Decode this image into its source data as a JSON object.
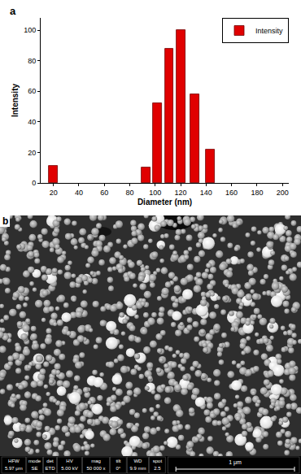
{
  "chart_data": {
    "type": "bar",
    "x_label": "Diameter (nm)",
    "y_label": "Intensity",
    "x": [
      20,
      93,
      102,
      111,
      120,
      131,
      143
    ],
    "series": [
      {
        "name": "Intensity",
        "color": "#e00000",
        "values": [
          11,
          10,
          52,
          88,
          100,
          58,
          22
        ]
      }
    ],
    "xlim": [
      10,
      205
    ],
    "xticks": [
      20,
      40,
      60,
      80,
      100,
      120,
      140,
      160,
      180,
      200
    ],
    "ylim": [
      0,
      108
    ],
    "yticks": [
      0,
      20,
      40,
      60,
      80,
      100
    ],
    "grid": false,
    "legend": "top right"
  },
  "panel_labels": [
    "a",
    "b"
  ],
  "image": {
    "info_bar": [
      [
        "HFW",
        "5.97 μm"
      ],
      [
        "mode",
        "SE"
      ],
      [
        "det",
        "ETD"
      ],
      [
        "HV",
        "5.00 kV"
      ],
      [
        "mag",
        "50 000 x"
      ],
      [
        "tilt",
        "0°"
      ],
      [
        "WD",
        "9.9 mm"
      ],
      [
        "spot",
        "2.5"
      ]
    ],
    "scale_bar": "1 μm"
  }
}
